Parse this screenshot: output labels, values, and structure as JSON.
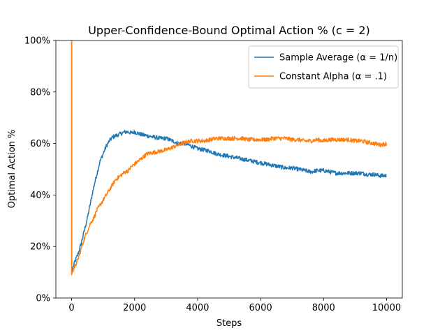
{
  "chart_data": {
    "type": "line",
    "title": "Upper-Confidence-Bound Optimal Action % (c = 2)",
    "xlabel": "Steps",
    "ylabel": "Optimal Action %",
    "xlim": [
      -500,
      10500
    ],
    "ylim": [
      0,
      100
    ],
    "x_ticks": [
      0,
      2000,
      4000,
      6000,
      8000,
      10000
    ],
    "x_tick_labels": [
      "0",
      "2000",
      "4000",
      "6000",
      "8000",
      "10000"
    ],
    "y_ticks": [
      0,
      20,
      40,
      60,
      80,
      100
    ],
    "y_tick_labels": [
      "0%",
      "20%",
      "40%",
      "60%",
      "80%",
      "100%"
    ],
    "grid": false,
    "legend_position": "top-right",
    "series": [
      {
        "name": "Sample Average (α = 1/n)",
        "color": "#1f77b4",
        "x": [
          0,
          1,
          5,
          20,
          50,
          100,
          200,
          300,
          400,
          500,
          600,
          700,
          800,
          900,
          1000,
          1100,
          1200,
          1300,
          1400,
          1500,
          1600,
          1700,
          1800,
          1900,
          2000,
          2200,
          2400,
          2600,
          2800,
          3000,
          3200,
          3400,
          3600,
          3800,
          4000,
          4200,
          4400,
          4600,
          4800,
          5000,
          5200,
          5400,
          5600,
          5800,
          6000,
          6200,
          6400,
          6600,
          6800,
          7000,
          7200,
          7400,
          7600,
          7800,
          8000,
          8200,
          8400,
          8600,
          8800,
          9000,
          9200,
          9400,
          9600,
          9800,
          10000
        ],
        "values": [
          100,
          9,
          10,
          11,
          12,
          14,
          17,
          21,
          26,
          31,
          37,
          43,
          48,
          53,
          56,
          59,
          61,
          62.5,
          63,
          63.5,
          64,
          64.5,
          64.5,
          64,
          64.5,
          63.5,
          63,
          62.5,
          62,
          62,
          61,
          60,
          60,
          59,
          58,
          57.5,
          57,
          56,
          55.5,
          55,
          54.5,
          54,
          53.5,
          53,
          52.5,
          52,
          51.5,
          51,
          50.5,
          50.5,
          50,
          49.5,
          49,
          49.5,
          49.5,
          49,
          48.5,
          48.5,
          48.5,
          48.5,
          48.5,
          48,
          48,
          47.5,
          47.5
        ]
      },
      {
        "name": "Constant Alpha (α = .1)",
        "color": "#ff7f0e",
        "x": [
          0,
          1,
          5,
          20,
          50,
          100,
          200,
          300,
          400,
          500,
          600,
          700,
          800,
          900,
          1000,
          1100,
          1200,
          1300,
          1400,
          1500,
          1600,
          1700,
          1800,
          1900,
          2000,
          2200,
          2400,
          2600,
          2800,
          3000,
          3200,
          3400,
          3600,
          3800,
          4000,
          4200,
          4400,
          4600,
          4800,
          5000,
          5200,
          5400,
          5600,
          5800,
          6000,
          6200,
          6400,
          6600,
          6800,
          7000,
          7200,
          7400,
          7600,
          7800,
          8000,
          8200,
          8400,
          8600,
          8800,
          9000,
          9200,
          9400,
          9600,
          9800,
          10000
        ],
        "values": [
          100,
          9,
          9.5,
          10,
          11,
          12,
          15,
          19,
          23,
          26,
          29,
          31,
          34,
          36,
          38,
          40,
          42,
          44,
          46,
          47,
          48,
          49,
          49.5,
          51,
          52,
          54,
          56,
          56.5,
          57,
          57.5,
          58.5,
          59.5,
          60.5,
          61,
          61,
          61,
          61.5,
          62,
          62,
          62,
          62,
          62,
          61.5,
          61.5,
          61.5,
          61.5,
          62,
          62,
          62,
          61.5,
          61.5,
          61,
          61,
          61.5,
          61,
          61.5,
          61.5,
          61.5,
          61.5,
          61,
          61,
          60.5,
          60,
          59.5,
          60
        ]
      }
    ]
  }
}
